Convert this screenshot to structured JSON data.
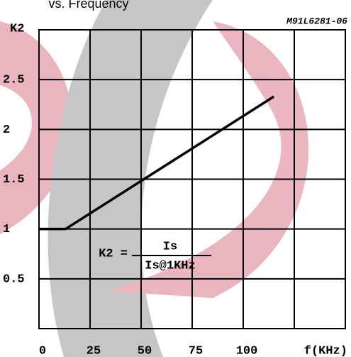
{
  "chart_data": {
    "type": "line",
    "title": "vs. Frequency",
    "code": "M91L6281-06",
    "ylabel": "K2",
    "xlabel": "f(KHz)",
    "formula": {
      "left": "K2 =",
      "numerator": "Is",
      "denominator": "Is@1KHz"
    },
    "x": [
      0,
      13,
      115
    ],
    "series": [
      {
        "values": [
          1.0,
          1.0,
          2.33
        ],
        "color": "#000000"
      }
    ],
    "xlim": [
      0,
      150
    ],
    "xticks": [
      0,
      25,
      50,
      75,
      100
    ],
    "ylim": [
      0,
      3
    ],
    "yticks": [
      0.5,
      1.0,
      1.5,
      2.0,
      2.5
    ],
    "grid": true
  }
}
